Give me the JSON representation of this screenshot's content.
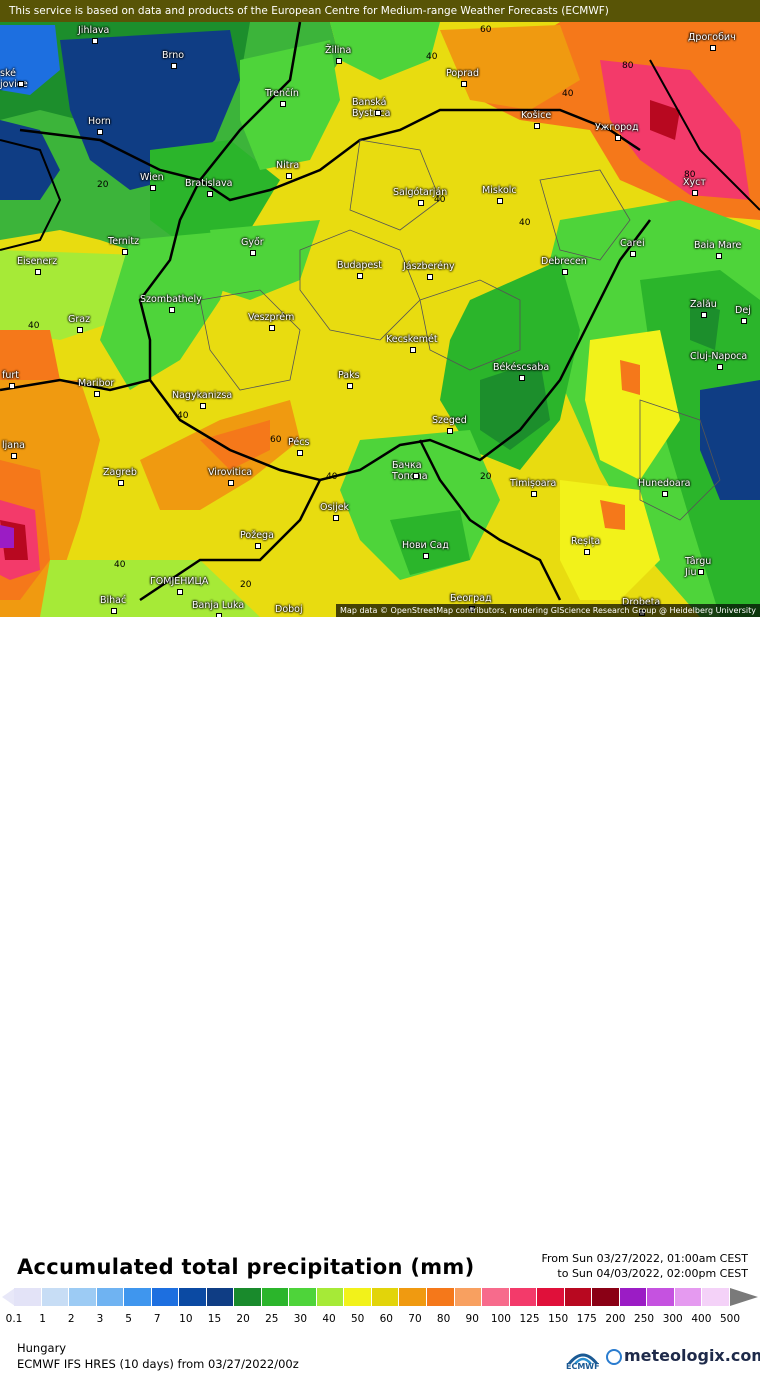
{
  "banner": "This service is based on data and products of the European Centre for Medium-range Weather Forecasts (ECMWF)",
  "attribution": "Map data © OpenStreetMap contributors, rendering GIScience Research Group @ Heidelberg University",
  "title": "Accumulated total precipitation (mm)",
  "period": {
    "from": "From Sun 03/27/2022, 01:00am CEST",
    "to": "to Sun 04/03/2022, 02:00pm CEST"
  },
  "legend": {
    "ticks": [
      "0.1",
      "1",
      "2",
      "3",
      "5",
      "7",
      "10",
      "15",
      "20",
      "25",
      "30",
      "40",
      "50",
      "60",
      "70",
      "80",
      "90",
      "100",
      "125",
      "150",
      "175",
      "200",
      "250",
      "300",
      "400",
      "500"
    ],
    "colors": [
      "#e3e3f7",
      "#c7ddf5",
      "#9ccbf4",
      "#6fb3f2",
      "#3f96ee",
      "#1d6fe0",
      "#0b4aa3",
      "#0f3d84",
      "#198a2c",
      "#2bb52b",
      "#4ed43a",
      "#a6ea37",
      "#f2f21a",
      "#e2d40a",
      "#f09a10",
      "#f5781a",
      "#f8a060",
      "#f76b8c",
      "#f33a6a",
      "#e0103a",
      "#b80820",
      "#8a0015",
      "#9b1cc5",
      "#c552e0",
      "#e59af0",
      "#f4d2f8"
    ]
  },
  "region": "Hungary",
  "model": "ECMWF IFS HRES (10 days) from 03/27/2022/00z",
  "logos": {
    "ecmwf": "ECMWF",
    "meteologix": "meteologix.com"
  },
  "cities": [
    {
      "name": "Jihlava"
    },
    {
      "name": "Brno"
    },
    {
      "name": "Žilina"
    },
    {
      "name": "Poprad"
    },
    {
      "name": "Дрогобич"
    },
    {
      "name": "Trenčín"
    },
    {
      "name": "Banská Bystrica"
    },
    {
      "name": "Košice"
    },
    {
      "name": "Ужгород"
    },
    {
      "name": "Horn"
    },
    {
      "name": "Nitra"
    },
    {
      "name": "Wien"
    },
    {
      "name": "Bratislava"
    },
    {
      "name": "Salgótarján"
    },
    {
      "name": "Miskolc"
    },
    {
      "name": "Хуст"
    },
    {
      "name": "Ternitz"
    },
    {
      "name": "Győr"
    },
    {
      "name": "Carei"
    },
    {
      "name": "Baia Mare"
    },
    {
      "name": "Eisenerz"
    },
    {
      "name": "Budapest"
    },
    {
      "name": "Jászberény"
    },
    {
      "name": "Debrecen"
    },
    {
      "name": "Szombathely"
    },
    {
      "name": "Graz"
    },
    {
      "name": "Veszprém"
    },
    {
      "name": "Zalău"
    },
    {
      "name": "Kecskemét"
    },
    {
      "name": "Cluj-Napoca"
    },
    {
      "name": "Maribor"
    },
    {
      "name": "Paks"
    },
    {
      "name": "Békéscsaba"
    },
    {
      "name": "Nagykanizsa"
    },
    {
      "name": "Szeged"
    },
    {
      "name": "Pécs"
    },
    {
      "name": "Zagreb"
    },
    {
      "name": "Virovitica"
    },
    {
      "name": "Бачка Топола"
    },
    {
      "name": "Timișoara"
    },
    {
      "name": "Hunedoara"
    },
    {
      "name": "Osijek"
    },
    {
      "name": "Požega"
    },
    {
      "name": "Нови Сад"
    },
    {
      "name": "Reșița"
    },
    {
      "name": "Târgu Jiu"
    },
    {
      "name": "ГОМЈЕНИЦА"
    },
    {
      "name": "Bihać"
    },
    {
      "name": "Banja Luka"
    },
    {
      "name": "Doboj"
    },
    {
      "name": "Београд"
    },
    {
      "name": "Drobeta"
    },
    {
      "name": "ljana"
    },
    {
      "name": "furt"
    },
    {
      "name": "ské jovice"
    },
    {
      "name": "Dej"
    }
  ],
  "contour_labels": [
    "60",
    "40",
    "80",
    "40",
    "80",
    "20",
    "40",
    "40",
    "40",
    "40",
    "60",
    "40",
    "20",
    "40",
    "20"
  ]
}
